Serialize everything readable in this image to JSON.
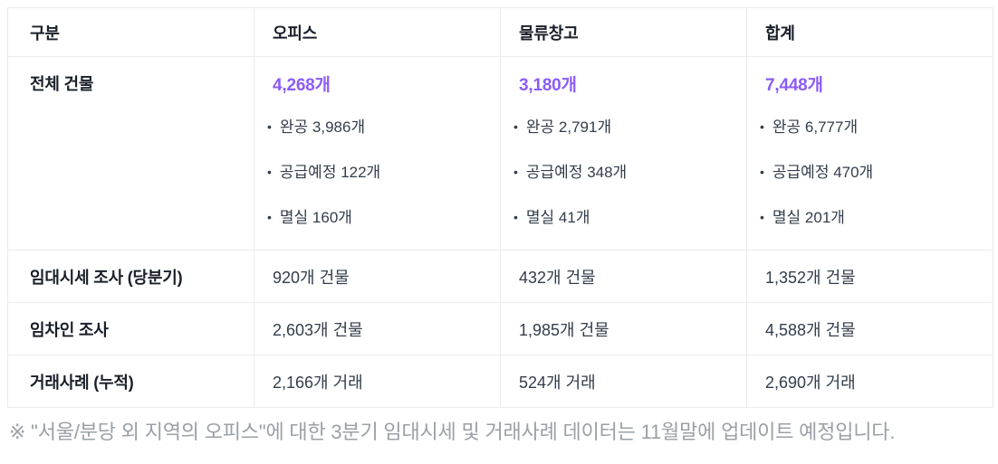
{
  "colors": {
    "accent_purple": "#8b5cf6",
    "heading_text": "#191f28",
    "body_text": "#333d4b",
    "border": "#ebebeb",
    "footnote_text": "#9aa0a6",
    "background": "#ffffff"
  },
  "table": {
    "headers": [
      "구분",
      "오피스",
      "물류창고",
      "합계"
    ],
    "rows": [
      {
        "label": "전체 건물",
        "cells": [
          {
            "value": "4,268개",
            "breakdown": [
              "완공 3,986개",
              "공급예정 122개",
              "멸실 160개"
            ]
          },
          {
            "value": "3,180개",
            "breakdown": [
              "완공 2,791개",
              "공급예정 348개",
              "멸실 41개"
            ]
          },
          {
            "value": "7,448개",
            "breakdown": [
              "완공 6,777개",
              "공급예정 470개",
              "멸실 201개"
            ]
          }
        ]
      },
      {
        "label": "임대시세 조사 (당분기)",
        "cells": [
          {
            "value": "920개 건물"
          },
          {
            "value": "432개 건물"
          },
          {
            "value": "1,352개 건물"
          }
        ]
      },
      {
        "label": "임차인 조사",
        "cells": [
          {
            "value": "2,603개 건물"
          },
          {
            "value": "1,985개 건물"
          },
          {
            "value": "4,588개 건물"
          }
        ]
      },
      {
        "label": "거래사례 (누적)",
        "cells": [
          {
            "value": "2,166개 거래"
          },
          {
            "value": "524개 거래"
          },
          {
            "value": "2,690개 거래"
          }
        ]
      }
    ]
  },
  "footnote": "※ \"서울/분당 외 지역의 오피스\"에 대한 3분기 임대시세 및 거래사례 데이터는 11월말에 업데이트 예정입니다."
}
